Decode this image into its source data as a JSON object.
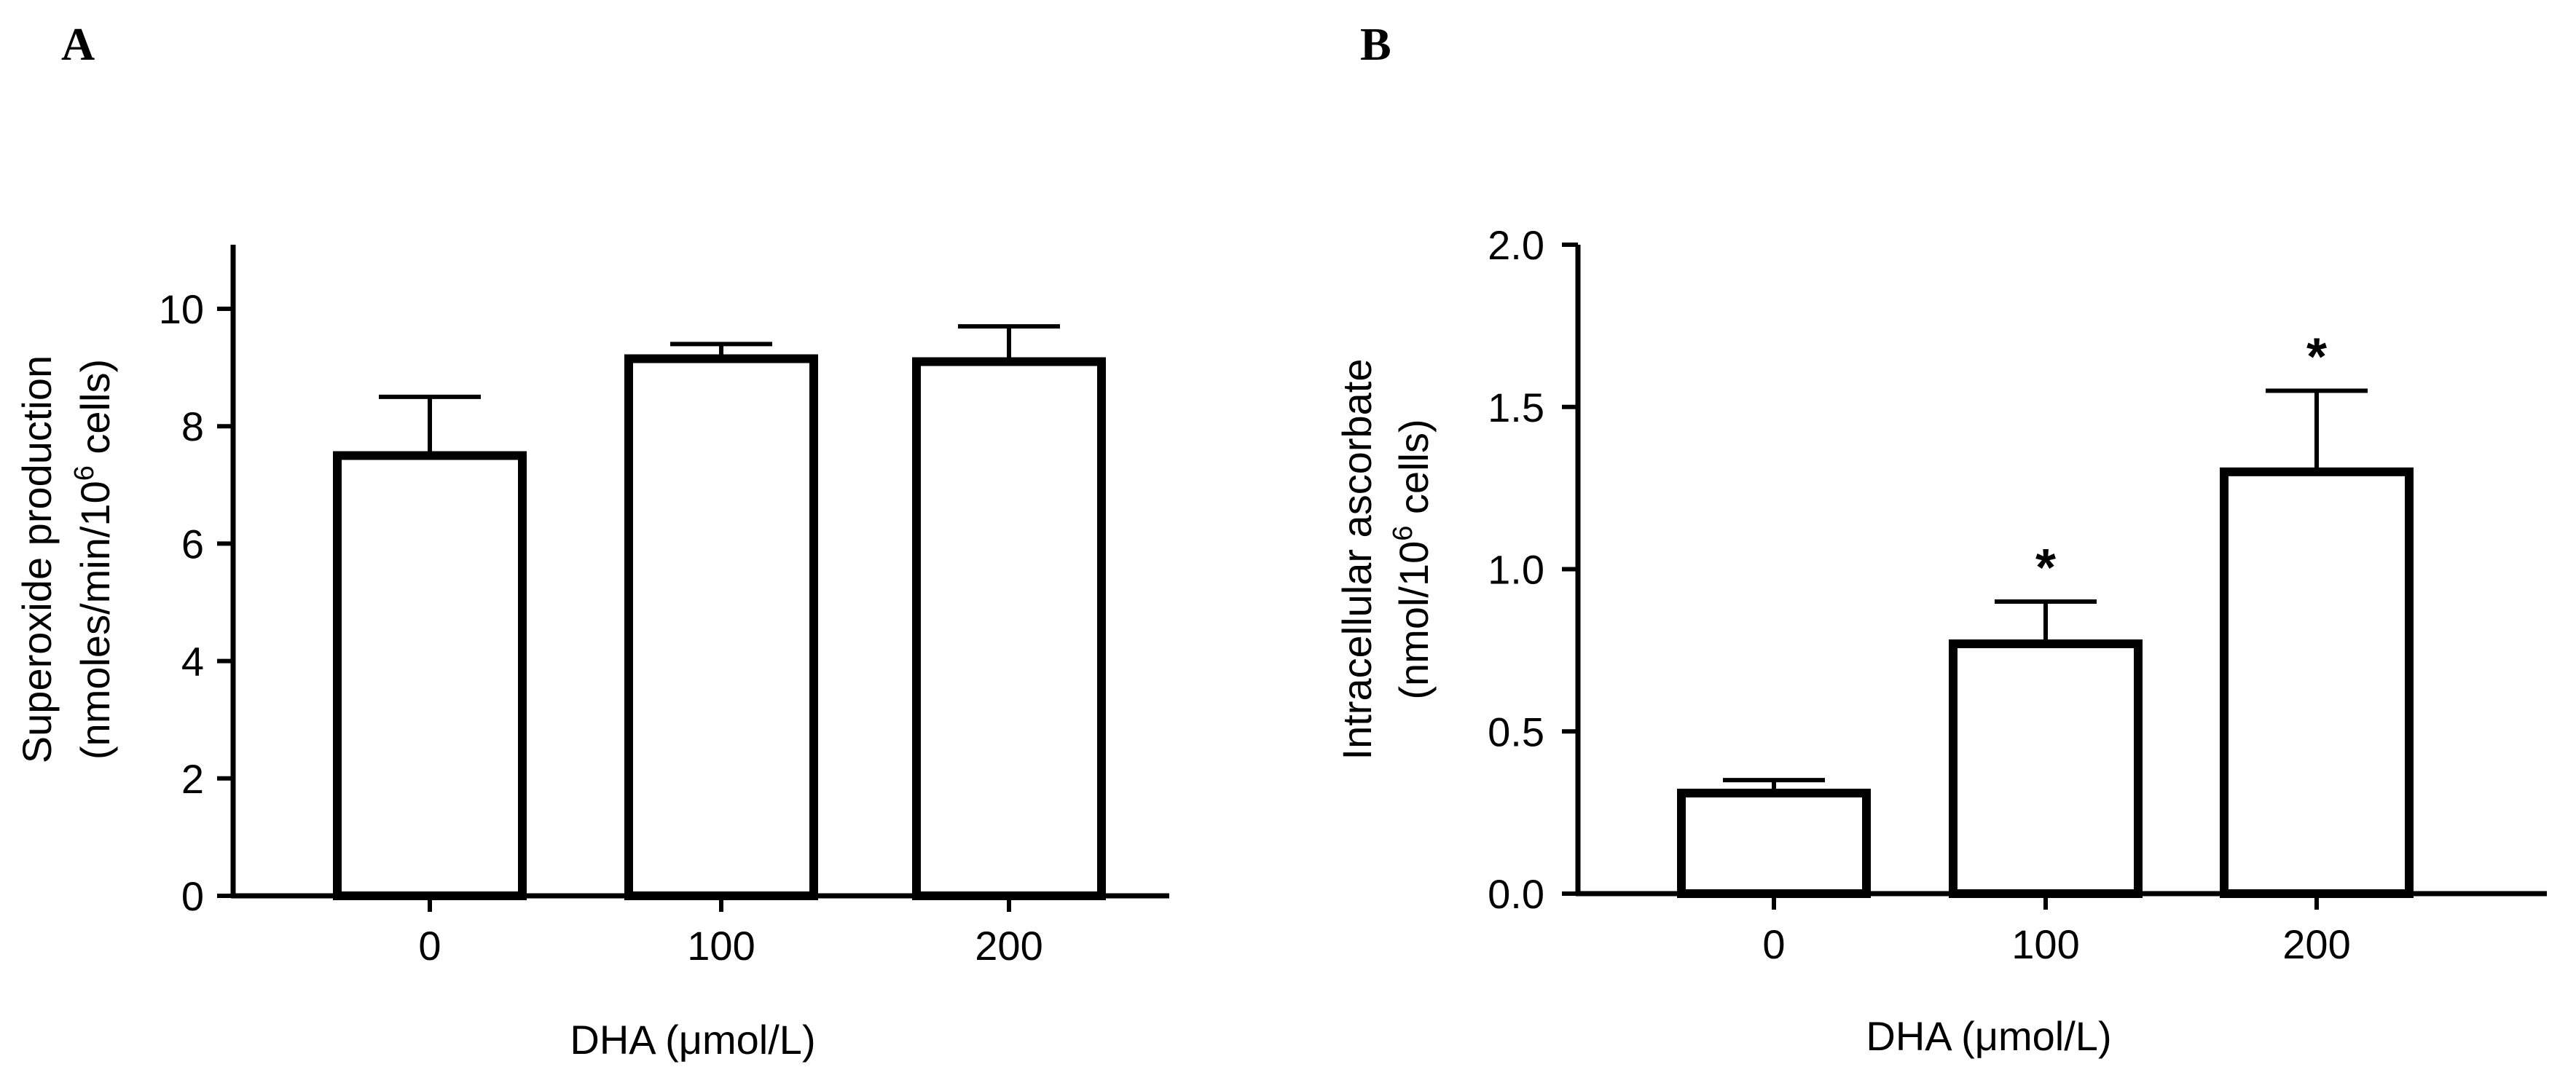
{
  "chart_data": [
    {
      "type": "bar",
      "panel_label": "A",
      "categories": [
        "0",
        "100",
        "200"
      ],
      "values": [
        7.5,
        9.15,
        9.1
      ],
      "errors": [
        1.0,
        0.25,
        0.6
      ],
      "significance": [
        "",
        "",
        ""
      ],
      "xlabel": "DHA (μmol/L)",
      "ylabel": {
        "line1": "Superoxide production",
        "line2_prefix": "(nmoles/min/10",
        "line2_sup": "6",
        "line2_suffix": " cells)"
      },
      "ylim": [
        0,
        11
      ],
      "yticks": [
        "0",
        "2",
        "4",
        "6",
        "8",
        "10"
      ],
      "ytick_values": [
        0,
        2,
        4,
        6,
        8,
        10
      ],
      "bar_fill": "#ffffff",
      "stroke_color": "#000000",
      "grid": false
    },
    {
      "type": "bar",
      "panel_label": "B",
      "categories": [
        "0",
        "100",
        "200"
      ],
      "values": [
        0.31,
        0.77,
        1.3
      ],
      "errors": [
        0.04,
        0.13,
        0.25
      ],
      "significance": [
        "",
        "*",
        "*"
      ],
      "xlabel": "DHA (μmol/L)",
      "ylabel": {
        "line1": "Intracellular ascorbate",
        "line2_prefix": "(nmol/10",
        "line2_sup": "6",
        "line2_suffix": " cells)"
      },
      "ylim": [
        0,
        2.0
      ],
      "yticks": [
        "0.0",
        "0.5",
        "1.0",
        "1.5",
        "2.0"
      ],
      "ytick_values": [
        0,
        0.5,
        1.0,
        1.5,
        2.0
      ],
      "bar_fill": "#ffffff",
      "stroke_color": "#000000",
      "grid": false
    }
  ]
}
